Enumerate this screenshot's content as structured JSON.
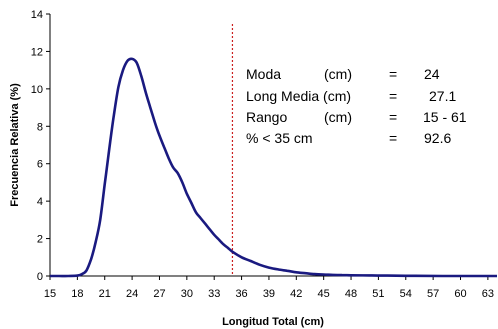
{
  "chart_data": {
    "type": "line",
    "xlabel": "Longitud Total (cm)",
    "ylabel": "Frecuencia Relativa (%)",
    "xlim": [
      15,
      64
    ],
    "ylim": [
      0,
      14
    ],
    "yticks": [
      0,
      2,
      4,
      6,
      8,
      10,
      12,
      14
    ],
    "xticks": [
      15,
      18,
      21,
      24,
      27,
      30,
      33,
      36,
      39,
      42,
      45,
      48,
      51,
      54,
      57,
      60,
      63
    ],
    "grid": false,
    "series": [
      {
        "color": "#1a1a80",
        "x": [
          15,
          16,
          17,
          18,
          18.5,
          19,
          19.5,
          20,
          20.5,
          21,
          21.5,
          22,
          22.5,
          23,
          23.5,
          24,
          24.5,
          25,
          25.5,
          26,
          26.5,
          27,
          27.5,
          28,
          28.5,
          29,
          29.5,
          30,
          30.5,
          31,
          31.5,
          32,
          32.5,
          33,
          33.5,
          34,
          34.5,
          35,
          36,
          37,
          38,
          39,
          40,
          41,
          42,
          43,
          44,
          45,
          46,
          47,
          48,
          50,
          52,
          55,
          58,
          61,
          64
        ],
        "y": [
          0,
          0,
          0,
          0.02,
          0.1,
          0.3,
          0.9,
          1.8,
          3.0,
          4.9,
          6.8,
          8.6,
          10.1,
          11.0,
          11.5,
          11.6,
          11.4,
          10.7,
          9.8,
          9.0,
          8.2,
          7.5,
          6.9,
          6.3,
          5.8,
          5.5,
          5.0,
          4.4,
          3.9,
          3.4,
          3.1,
          2.8,
          2.5,
          2.2,
          1.95,
          1.7,
          1.5,
          1.3,
          1.0,
          0.8,
          0.6,
          0.45,
          0.35,
          0.28,
          0.2,
          0.15,
          0.1,
          0.08,
          0.06,
          0.05,
          0.04,
          0.03,
          0.02,
          0.01,
          0,
          0,
          0
        ]
      }
    ],
    "reference_line": {
      "x": 35,
      "color": "#cc2020"
    },
    "annotations": [
      {
        "label": "Moda",
        "unit": "(cm)",
        "eq": "=",
        "value": "24"
      },
      {
        "label": "Long Media (cm)",
        "unit": "",
        "eq": "=",
        "value": "27.1"
      },
      {
        "label": "Rango",
        "unit": "(cm)",
        "eq": "=",
        "value": "15 - 61"
      },
      {
        "label": "% < 35 cm",
        "unit": "",
        "eq": "=",
        "value": "92.6"
      }
    ]
  }
}
